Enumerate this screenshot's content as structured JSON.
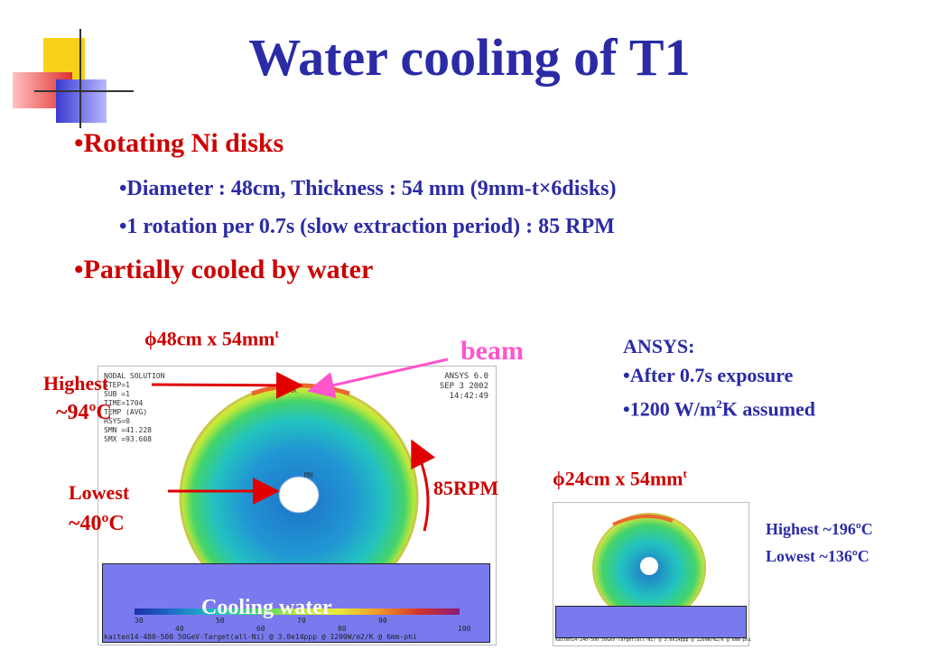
{
  "title": "Water cooling of T1",
  "bullets": {
    "b1": "•Rotating Ni disks",
    "b1_sub1": "•Diameter : 48cm, Thickness : 54 mm (9mm-t×6disks)",
    "b1_sub2": "•1 rotation per 0.7s (slow extraction period) : 85 RPM",
    "b2": "•Partially cooled by water"
  },
  "figure_large": {
    "dimension_main": "ϕ48cm x 54mm",
    "dimension_sup": "t",
    "beam_label": "beam",
    "highest_label": "Highest",
    "highest_value": "~94ºC",
    "lowest_label": "Lowest",
    "lowest_value": "~40ºC",
    "rpm_label": "85RPM",
    "cooling_label": "Cooling water",
    "ansys_header": [
      "NODAL SOLUTION",
      "STEP=1",
      "SUB =1",
      "TIME=1704",
      "TEMP      (AVG)",
      "RSYS=0",
      "SMN =41.228",
      "SMX =93.608"
    ],
    "ansys_version": [
      "ANSYS 6.0",
      "SEP  3 2002",
      "14:42:49"
    ],
    "mx_label": "MX",
    "mn_label": "MN",
    "scale_top": [
      "30",
      "50",
      "70",
      "90"
    ],
    "scale_bottom": [
      "40",
      "60",
      "80",
      "100"
    ],
    "footer": "kaiten14-480-500 50GeV-Target(all-Ni) @ 3.0e14ppp @ 1200W/m2/K @ 6mm-phi"
  },
  "ansys_notes": {
    "header": "ANSYS:",
    "item1": "•After 0.7s exposure",
    "item2_main": "•1200 W/m",
    "item2_sup": "2",
    "item2_end": "K assumed"
  },
  "figure_small": {
    "dimension_main": "ϕ24cm x 54mm",
    "dimension_sup": "t",
    "highest": "Highest ~196ºC",
    "lowest": "Lowest ~136ºC",
    "footer": "kaiten14-240-500 50GeV-Target(all-Ni) @ 3.0e14ppp @ 1200W/m2/K @ 6mm-phi"
  },
  "colors": {
    "title": "#2b2ba6",
    "bullet_red": "#cc0000",
    "beam": "#ff55cc",
    "water": "#7a7aee"
  }
}
